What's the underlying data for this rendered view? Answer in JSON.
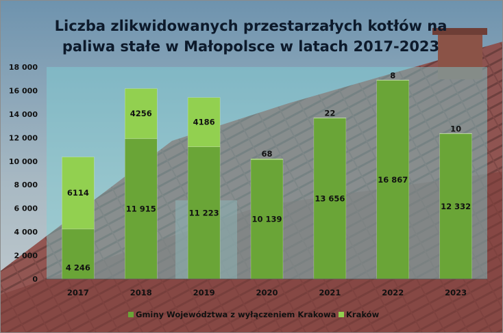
{
  "chart_data": {
    "type": "bar",
    "stacked": true,
    "title": "Liczba zlikwidowanych przestarzałych kotłów na paliwa stałe w Małopolsce w latach 2017-2023",
    "title_lines": [
      "Liczba zlikwidowanych przestarzałych kotłów na",
      "paliwa stałe w Małopolsce w latach 2017-2023"
    ],
    "categories": [
      "2017",
      "2018",
      "2019",
      "2020",
      "2021",
      "2022",
      "2023"
    ],
    "series": [
      {
        "name": "Gminy Województwa z wyłączeniem Krakowa",
        "values": [
          4246,
          11915,
          11223,
          10139,
          13656,
          16867,
          12332
        ],
        "labels": [
          "4 246",
          "11 915",
          "11 223",
          "10 139",
          "13 656",
          "16 867",
          "12 332"
        ],
        "color": "#6aa537"
      },
      {
        "name": "Kraków",
        "values": [
          6114,
          4256,
          4186,
          68,
          22,
          8,
          10
        ],
        "labels": [
          "6114",
          "4256",
          "4186",
          "68",
          "22",
          "8",
          "10"
        ],
        "color": "#92d050"
      }
    ],
    "ylim": [
      0,
      18000
    ],
    "yticks": [
      "0",
      "2 000",
      "4 000",
      "6 000",
      "8 000",
      "10 000",
      "12 000",
      "14 000",
      "16 000",
      "18 000"
    ],
    "grid": false,
    "legend_position": "bottom"
  }
}
